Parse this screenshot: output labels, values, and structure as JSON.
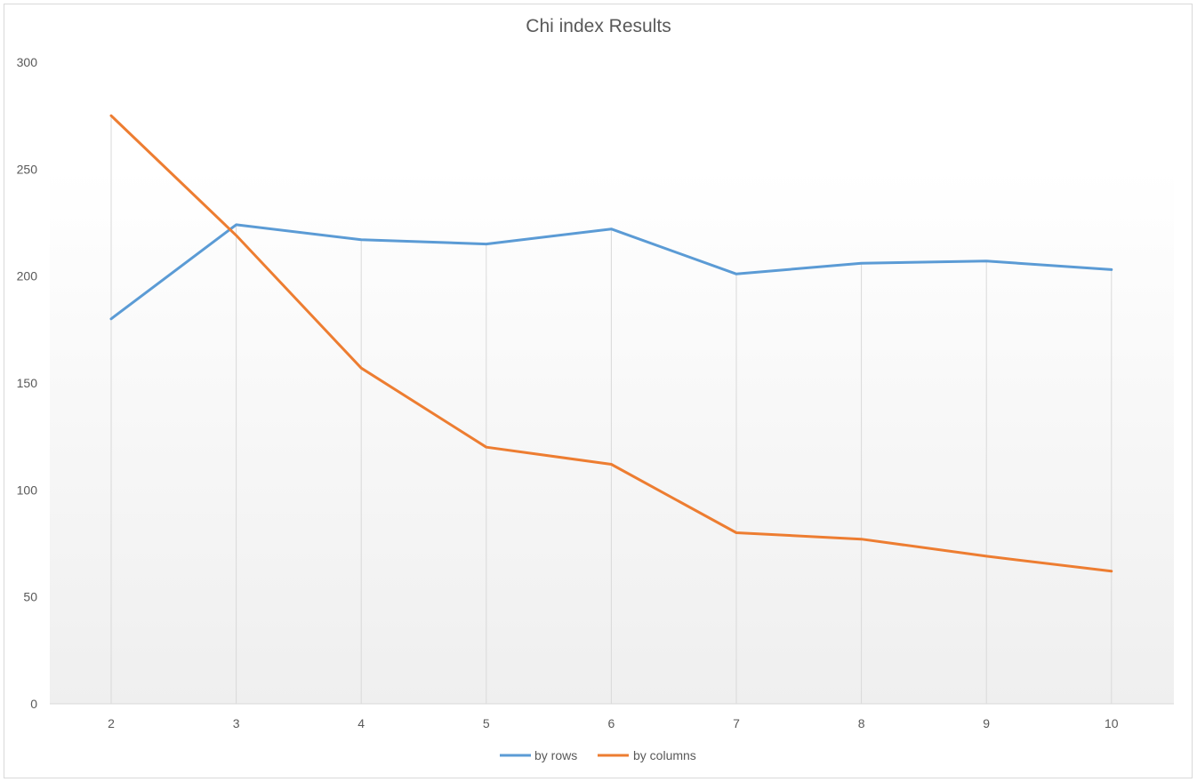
{
  "chart_data": {
    "type": "line",
    "title": "Chi index Results",
    "xlabel": "",
    "ylabel": "",
    "x": [
      "2",
      "3",
      "4",
      "5",
      "6",
      "7",
      "8",
      "9",
      "10"
    ],
    "ylim": [
      0,
      300
    ],
    "yticks": [
      "0",
      "50",
      "100",
      "150",
      "200",
      "250",
      "300"
    ],
    "grid": "vertical",
    "legend_position": "bottom",
    "series": [
      {
        "name": "by rows",
        "color": "#5b9bd5",
        "values": [
          180,
          224,
          217,
          215,
          222,
          201,
          206,
          207,
          203
        ]
      },
      {
        "name": "by columns",
        "color": "#ed7d31",
        "values": [
          275,
          219,
          157,
          120,
          112,
          80,
          77,
          69,
          62
        ]
      }
    ]
  }
}
